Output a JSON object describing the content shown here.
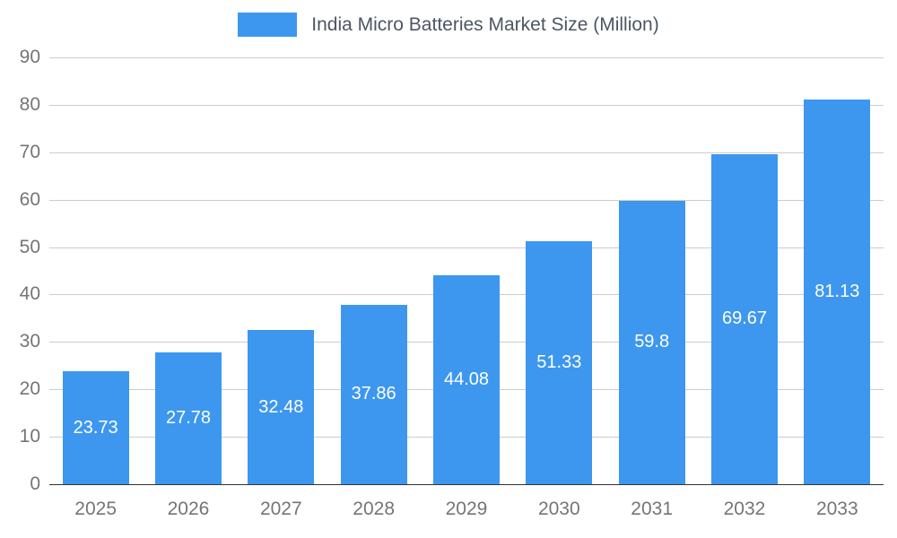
{
  "chart_data": {
    "type": "bar",
    "title": "India Micro Batteries Market Size (Million)",
    "categories": [
      "2025",
      "2026",
      "2027",
      "2028",
      "2029",
      "2030",
      "2031",
      "2032",
      "2033"
    ],
    "values": [
      23.73,
      27.78,
      32.48,
      37.86,
      44.08,
      51.33,
      59.8,
      69.67,
      81.13
    ],
    "xlabel": "",
    "ylabel": "",
    "ylim": [
      0,
      90
    ],
    "ytick_step": 10,
    "grid": true,
    "legend_position": "top",
    "value_labels": "inside-center",
    "colors": {
      "bar": "#3d97ee",
      "grid": "#cccccc",
      "axis_text": "#757575",
      "baseline": "#333333",
      "value_label": "#ffffff",
      "legend_text": "#4c5663"
    }
  }
}
